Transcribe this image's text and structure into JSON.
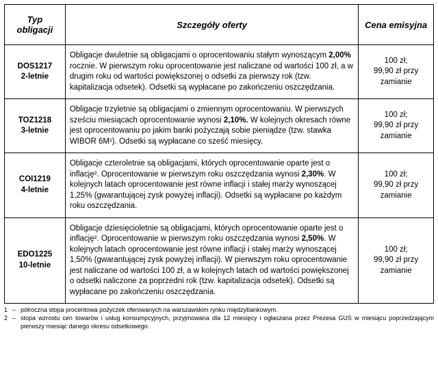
{
  "table": {
    "headers": {
      "col1": "Typ obligacji",
      "col2": "Szczegóły oferty",
      "col3": "Cena emisyjna"
    },
    "rows": [
      {
        "type_code": "DOS1217",
        "type_term": "2-letnie",
        "details_pre": "Obligacje dwuletnie są obligacjami o oprocentowaniu stałym wynoszącym ",
        "details_bold": "2,00%",
        "details_post": " rocznie.  W pierwszym roku oprocentowanie jest naliczane od wartości 100 zł, a w drugim roku od wartości powiększonej o odsetki za pierwszy rok (tzw. kapitalizacja odsetek). Odsetki są wypłacane po zakończeniu oszczędzania.",
        "price_line1": "100 zł;",
        "price_line2": "99,90 zł przy",
        "price_line3": "zamianie"
      },
      {
        "type_code": "TOZ1218",
        "type_term": "3-letnie",
        "details_pre": "Obligacje trzyletnie są obligacjami o zmiennym oprocentowaniu. W pierwszych sześciu miesiącach oprocentowanie wynosi ",
        "details_bold": "2,10%.",
        "details_post": " W kolejnych okresach równe jest oprocentowaniu po jakim banki pożyczają sobie pieniądze (tzw. stawka WIBOR 6M¹). Odsetki są wypłacane co sześć miesięcy.",
        "price_line1": "100 zł;",
        "price_line2": "99,90 zł przy",
        "price_line3": "zamianie"
      },
      {
        "type_code": "COI1219",
        "type_term": "4-letnie",
        "details_pre": "Obligacje czteroletnie są obligacjami, których oprocentowanie oparte jest o inflację². Oprocentowanie w pierwszym roku oszczędzania wynosi ",
        "details_bold": "2,30%",
        "details_post": ". W kolejnych latach oprocentowanie jest równe inflacji i stałej marży wynoszącej 1,25% (gwarantującej zysk powyżej inflacji). Odsetki są wypłacane po każdym roku oszczędzania.",
        "price_line1": "100 zł;",
        "price_line2": "99,90 zł przy",
        "price_line3": "zamianie"
      },
      {
        "type_code": "EDO1225",
        "type_term": "10-letnie",
        "details_pre": "Obligacje dziesięcioletnie są obligacjami, których oprocentowanie oparte jest o inflację². Oprocentowanie w pierwszym roku oszczędzania wynosi ",
        "details_bold": "2,50%",
        "details_post": ". W kolejnych latach oprocentowanie jest równe inflacji i stałej marży wynoszącej 1,50% (gwarantującej zysk powyżej inflacji). W pierwszym roku oprocentowanie jest naliczane od wartości 100 zł, a w kolejnych latach od wartości powiększonej o odsetki naliczone za poprzedni rok (tzw. kapitalizacja odsetek). Odsetki są wypłacane po zakończeniu oszczędzania.",
        "price_line1": "100 zł;",
        "price_line2": "99,90 zł przy",
        "price_line3": "zamianie"
      }
    ]
  },
  "footnotes": [
    {
      "num": "1",
      "text": "półroczna stopa procentowa pożyczek oferowanych na warszawskim rynku międzybankowym."
    },
    {
      "num": "2",
      "text": "stopa wzrostu cen towarów i usług konsumpcyjnych, przyjmowana dla 12 miesięcy i ogłaszana przez Prezesa GUS w miesiącu poprzedzającym pierwszy miesiąc danego okresu odsetkowego."
    }
  ],
  "style": {
    "border_color": "#000000",
    "background": "#ffffff",
    "header_fontsize": 13,
    "body_fontsize": 11.5,
    "footnote_fontsize": 9
  }
}
